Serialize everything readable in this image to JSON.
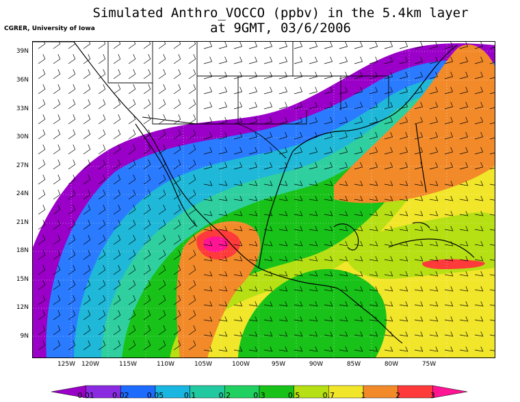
{
  "title": {
    "line1": "Simulated Anthro_VOCCO (ppbv) in the 5.4km layer",
    "line2": "at 9GMT, 03/6/2006"
  },
  "credit": "CGRER, University of Iowa",
  "lat_labels": [
    "39N",
    "36N",
    "33N",
    "30N",
    "27N",
    "24N",
    "21N",
    "18N",
    "15N",
    "12N",
    "9N"
  ],
  "lon_labels": [
    "125W",
    "120W",
    "115W",
    "110W",
    "105W",
    "100W",
    "95W",
    "90W",
    "85W",
    "80W",
    "75W"
  ],
  "colorbar": {
    "labels": [
      "0.01",
      "0.02",
      "0.05",
      "0.1",
      "0.2",
      "0.3",
      "0.5",
      "0.7",
      "1",
      "2",
      "3"
    ],
    "colors": [
      "#9b00c8",
      "#8a2be2",
      "#1e6bff",
      "#18b6e0",
      "#22c9a0",
      "#20d060",
      "#18c218",
      "#b6e014",
      "#f2e62a",
      "#f28a2a",
      "#ff3a3a",
      "#ff1493"
    ]
  },
  "colors": {
    "purple": "#9b00c8",
    "blue": "#2a7bff",
    "cyan": "#1fb8d8",
    "teal": "#2fcf9f",
    "green": "#18c218",
    "lime": "#b6e014",
    "yellow": "#f2e62a",
    "orange": "#f28a2a",
    "red": "#ff3a3a",
    "pink": "#ff1493"
  }
}
